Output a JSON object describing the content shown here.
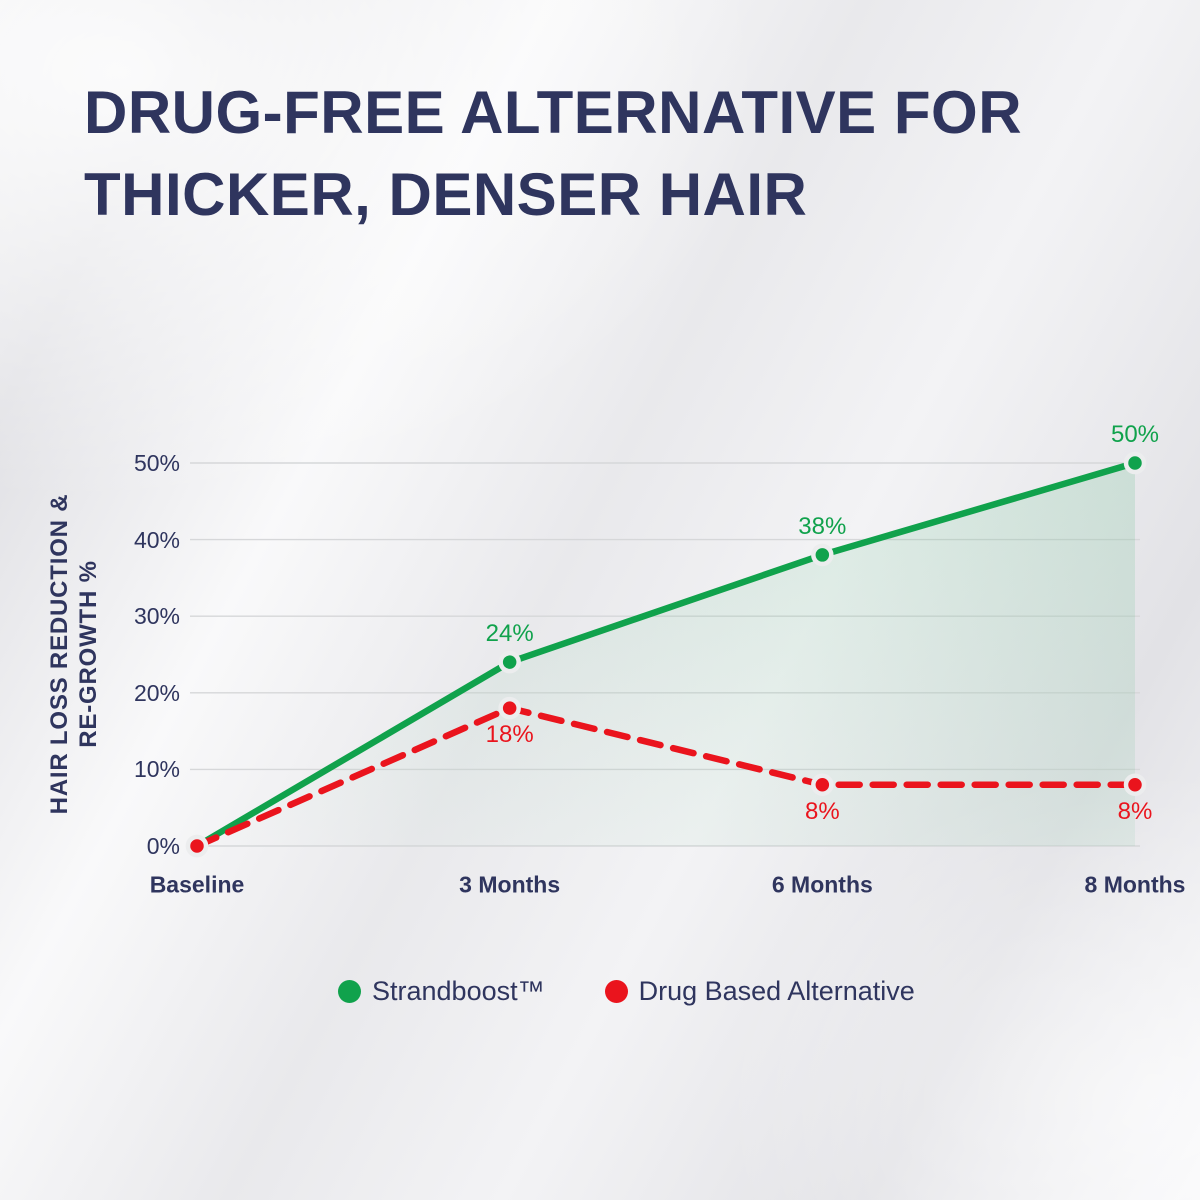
{
  "title": {
    "line1": "DRUG-FREE ALTERNATIVE FOR",
    "line2": "THICKER, DENSER HAIR"
  },
  "chart_data": {
    "type": "line",
    "title": "Drug-free alternative for thicker, denser hair",
    "categories": [
      "Baseline",
      "3 Months",
      "6 Months",
      "8 Months"
    ],
    "series": [
      {
        "name": "Strandboost™",
        "values": [
          0,
          24,
          38,
          50
        ],
        "point_labels": [
          "",
          "24%",
          "38%",
          "50%"
        ],
        "color": "#10A24C",
        "line_style": "solid",
        "area_fill": true
      },
      {
        "name": "Drug Based Alternative",
        "values": [
          0,
          18,
          8,
          8
        ],
        "point_labels": [
          "",
          "18%",
          "8%",
          "8%"
        ],
        "color": "#EA141D",
        "line_style": "dashed",
        "area_fill": false
      }
    ],
    "xlabel": "",
    "ylabel": "HAIR LOSS REDUCTION & RE-GROWTH %",
    "ylabel_lines": [
      "HAIR LOSS REDUCTION &",
      "RE-GROWTH %"
    ],
    "yticks": [
      0,
      10,
      20,
      30,
      40,
      50
    ],
    "ytick_labels": [
      "0%",
      "10%",
      "20%",
      "30%",
      "40%",
      "50%"
    ],
    "ylim": [
      0,
      50
    ],
    "grid": true,
    "legend_position": "bottom"
  },
  "colors": {
    "heading": "#2F355E",
    "gridline": "#D6D7D9",
    "marker_halo": "#ECEDEE",
    "green": "#10A24C",
    "red": "#EA141D"
  }
}
